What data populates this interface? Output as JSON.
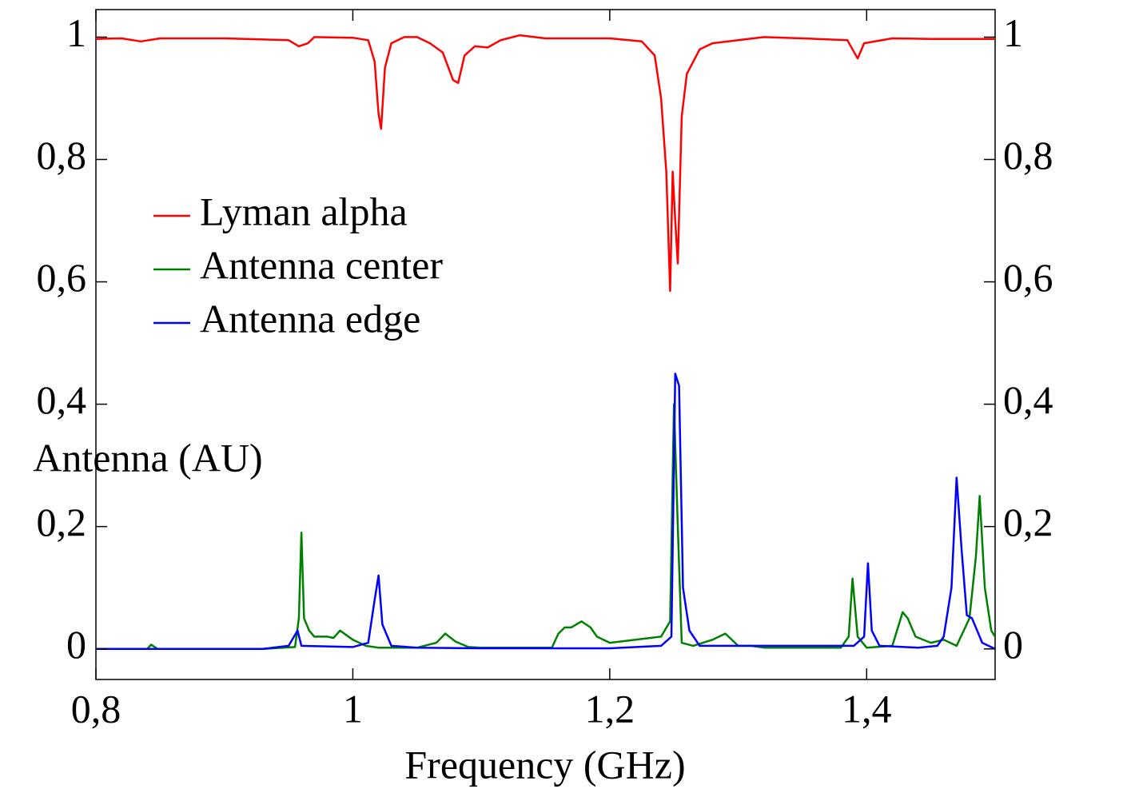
{
  "chart_data": {
    "type": "line",
    "x_label": "Frequency (GHz)",
    "y_label": "Antenna (AU)",
    "xlim": [
      0.8,
      1.5
    ],
    "xticks": [
      {
        "value": 0.8,
        "label": "0,8"
      },
      1,
      {
        "value": 1.2,
        "label": "1,2"
      },
      {
        "value": 1.4,
        "label": "1,4"
      }
    ],
    "ylim": [
      -0.05,
      1.045
    ],
    "yticks": [
      0,
      {
        "value": 0.2,
        "label": "0,2"
      },
      {
        "value": 0.4,
        "label": "0,4"
      },
      {
        "value": 0.6,
        "label": "0,6"
      },
      {
        "value": 0.8,
        "label": "0,8"
      },
      1
    ],
    "y2lim": [
      -0.05,
      1.045
    ],
    "y2ticks": [
      0,
      {
        "value": 0.2,
        "label": "0,2"
      },
      {
        "value": 0.4,
        "label": "0,4"
      },
      {
        "value": 0.6,
        "label": "0,6"
      },
      {
        "value": 0.8,
        "label": "0,8"
      },
      1
    ],
    "legend": "upper left",
    "series": [
      {
        "name": "Lyman alpha",
        "color": "#ff0000",
        "x": [
          0.8,
          0.82,
          0.835,
          0.85,
          0.9,
          0.95,
          0.958,
          0.965,
          0.97,
          1.0,
          1.012,
          1.017,
          1.02,
          1.022,
          1.025,
          1.03,
          1.04,
          1.05,
          1.06,
          1.07,
          1.078,
          1.082,
          1.087,
          1.095,
          1.105,
          1.115,
          1.13,
          1.15,
          1.2,
          1.225,
          1.235,
          1.24,
          1.244,
          1.247,
          1.249,
          1.251,
          1.253,
          1.256,
          1.26,
          1.27,
          1.28,
          1.3,
          1.32,
          1.35,
          1.385,
          1.393,
          1.398,
          1.42,
          1.45,
          1.5
        ],
        "values": [
          0.997,
          0.998,
          0.993,
          0.998,
          0.998,
          0.995,
          0.985,
          0.99,
          1.0,
          0.999,
          0.995,
          0.96,
          0.875,
          0.85,
          0.95,
          0.99,
          1.0,
          1.0,
          0.99,
          0.975,
          0.93,
          0.925,
          0.97,
          0.985,
          0.983,
          0.995,
          1.003,
          0.998,
          0.998,
          0.993,
          0.97,
          0.9,
          0.78,
          0.585,
          0.78,
          0.7,
          0.63,
          0.87,
          0.94,
          0.98,
          0.99,
          0.995,
          1.0,
          0.998,
          0.995,
          0.965,
          0.99,
          0.998,
          0.997,
          0.997
        ]
      },
      {
        "name": "Antenna center",
        "color": "#008000",
        "x": [
          0.8,
          0.84,
          0.843,
          0.848,
          0.93,
          0.955,
          0.958,
          0.96,
          0.962,
          0.966,
          0.97,
          0.98,
          0.985,
          0.99,
          1.0,
          1.01,
          1.02,
          1.05,
          1.065,
          1.072,
          1.08,
          1.09,
          1.1,
          1.155,
          1.16,
          1.165,
          1.17,
          1.178,
          1.185,
          1.19,
          1.2,
          1.22,
          1.24,
          1.247,
          1.25,
          1.253,
          1.256,
          1.265,
          1.28,
          1.29,
          1.3,
          1.31,
          1.32,
          1.38,
          1.386,
          1.389,
          1.393,
          1.4,
          1.42,
          1.428,
          1.432,
          1.438,
          1.45,
          1.46,
          1.47,
          1.48,
          1.485,
          1.488,
          1.492,
          1.497,
          1.5
        ],
        "values": [
          0,
          0,
          0.007,
          0,
          0,
          0.003,
          0.05,
          0.19,
          0.05,
          0.03,
          0.02,
          0.02,
          0.018,
          0.03,
          0.015,
          0.005,
          0.002,
          0.002,
          0.01,
          0.025,
          0.012,
          0.003,
          0.002,
          0.002,
          0.025,
          0.035,
          0.035,
          0.045,
          0.035,
          0.02,
          0.01,
          0.015,
          0.02,
          0.045,
          0.4,
          0.2,
          0.01,
          0.005,
          0.015,
          0.025,
          0.005,
          0.005,
          0.002,
          0.002,
          0.02,
          0.115,
          0.02,
          0.002,
          0.005,
          0.06,
          0.05,
          0.02,
          0.01,
          0.015,
          0.005,
          0.05,
          0.15,
          0.25,
          0.1,
          0.03,
          0.02
        ]
      },
      {
        "name": "Antenna edge",
        "color": "#0000ff",
        "x": [
          0.8,
          0.93,
          0.95,
          0.957,
          0.96,
          1.0,
          1.012,
          1.017,
          1.02,
          1.023,
          1.03,
          1.05,
          1.1,
          1.2,
          1.24,
          1.248,
          1.251,
          1.254,
          1.257,
          1.262,
          1.27,
          1.3,
          1.39,
          1.398,
          1.401,
          1.404,
          1.41,
          1.44,
          1.455,
          1.46,
          1.466,
          1.47,
          1.474,
          1.478,
          1.482,
          1.486,
          1.49,
          1.5
        ],
        "values": [
          0,
          0,
          0.005,
          0.03,
          0.005,
          0.003,
          0.01,
          0.08,
          0.12,
          0.04,
          0.005,
          0.002,
          0.001,
          0.001,
          0.005,
          0.02,
          0.45,
          0.43,
          0.1,
          0.03,
          0.005,
          0.005,
          0.005,
          0.02,
          0.14,
          0.03,
          0.005,
          0.002,
          0.005,
          0.02,
          0.1,
          0.28,
          0.16,
          0.055,
          0.05,
          0.03,
          0.01,
          0
        ]
      }
    ]
  }
}
